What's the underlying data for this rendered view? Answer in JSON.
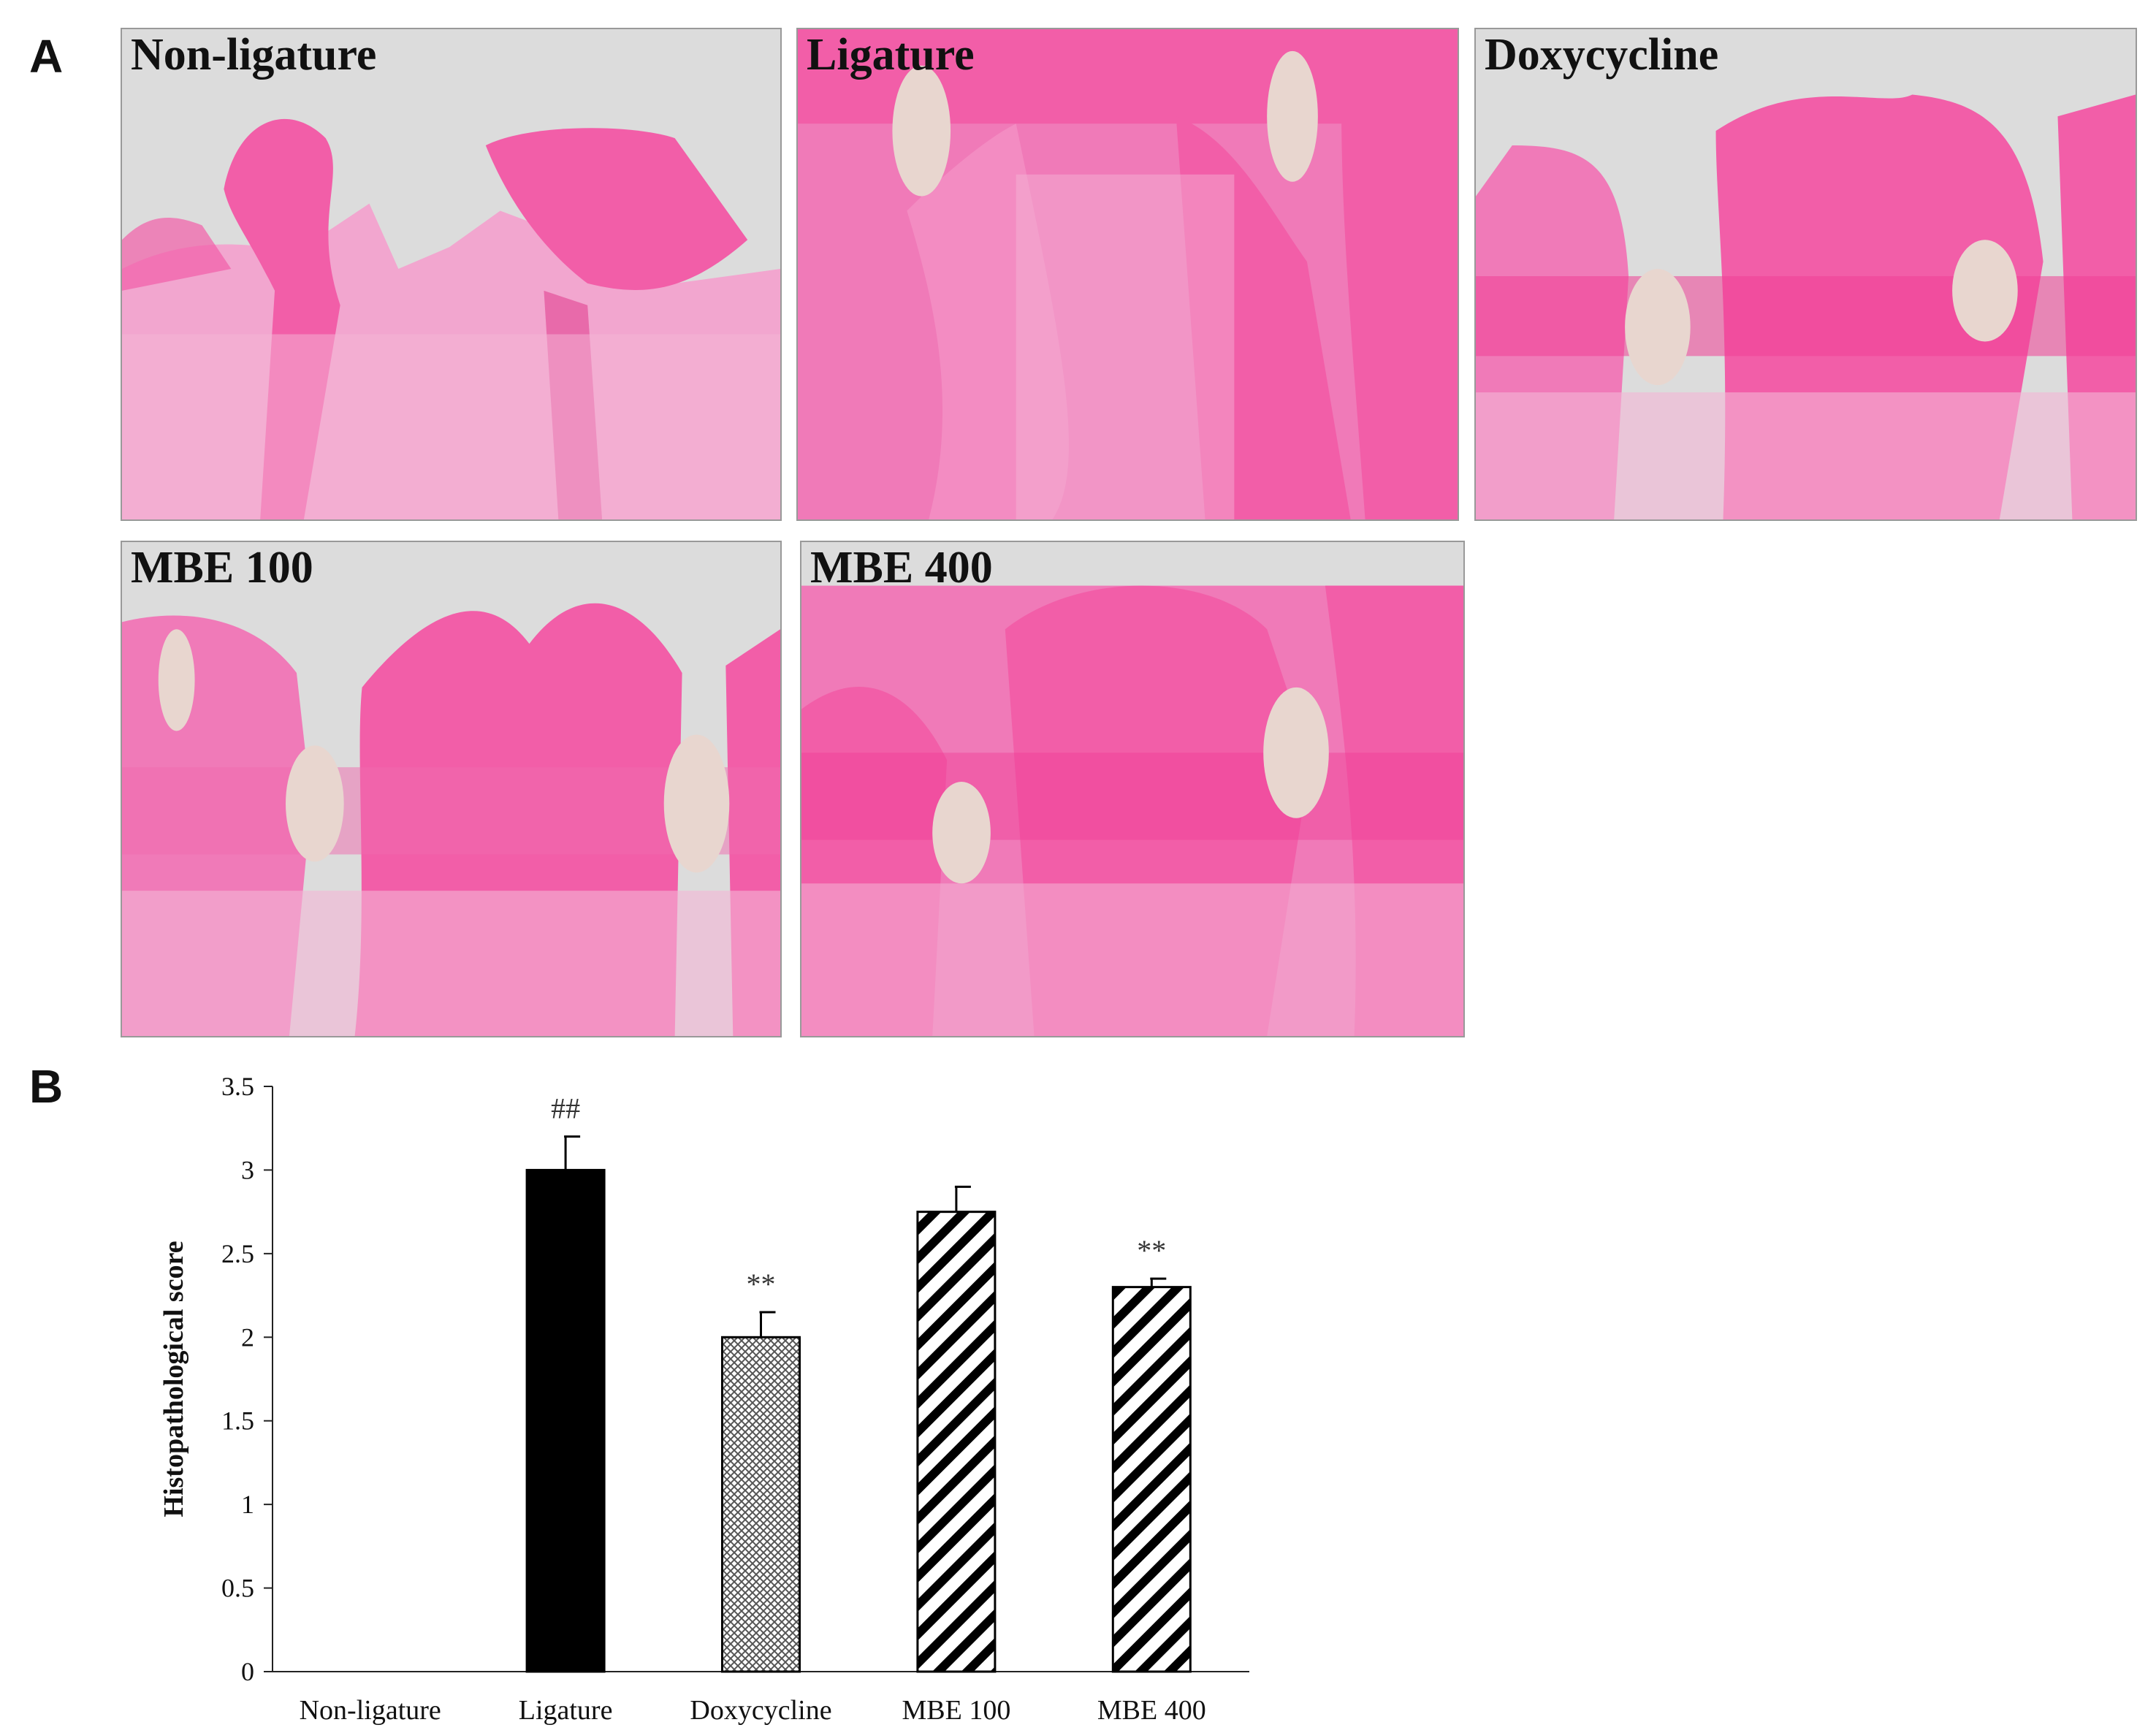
{
  "panels": {
    "a_letter": "A",
    "b_letter": "B"
  },
  "images": [
    {
      "label": "Non-ligature"
    },
    {
      "label": "Ligature"
    },
    {
      "label": "Doxycycline"
    },
    {
      "label": "MBE 100"
    },
    {
      "label": "MBE 400"
    }
  ],
  "colors": {
    "tissue_pink": "#f07ab8",
    "tooth_pink": "#f25ea8",
    "background_grey": "#dcdcdc",
    "bar_black": "#000000"
  },
  "chart_data": {
    "type": "bar",
    "categories": [
      "Non-ligature",
      "Ligature",
      "Doxycycline",
      "MBE 100",
      "MBE 400"
    ],
    "values": [
      0,
      3.0,
      2.0,
      2.75,
      2.3
    ],
    "errors": [
      0,
      0.2,
      0.15,
      0.15,
      0.05
    ],
    "fills": [
      "none",
      "solid-black",
      "crosshatch",
      "diagonal",
      "diagonal"
    ],
    "annotations": [
      "",
      "##",
      "**",
      "",
      "**"
    ],
    "ylabel": "Histopathological score",
    "xlabel": "",
    "ylim": [
      0,
      3.5
    ],
    "yticks": [
      "0",
      "0.5",
      "1",
      "1.5",
      "2",
      "2.5",
      "3",
      "3.5"
    ],
    "grid": false,
    "legend": "none"
  }
}
